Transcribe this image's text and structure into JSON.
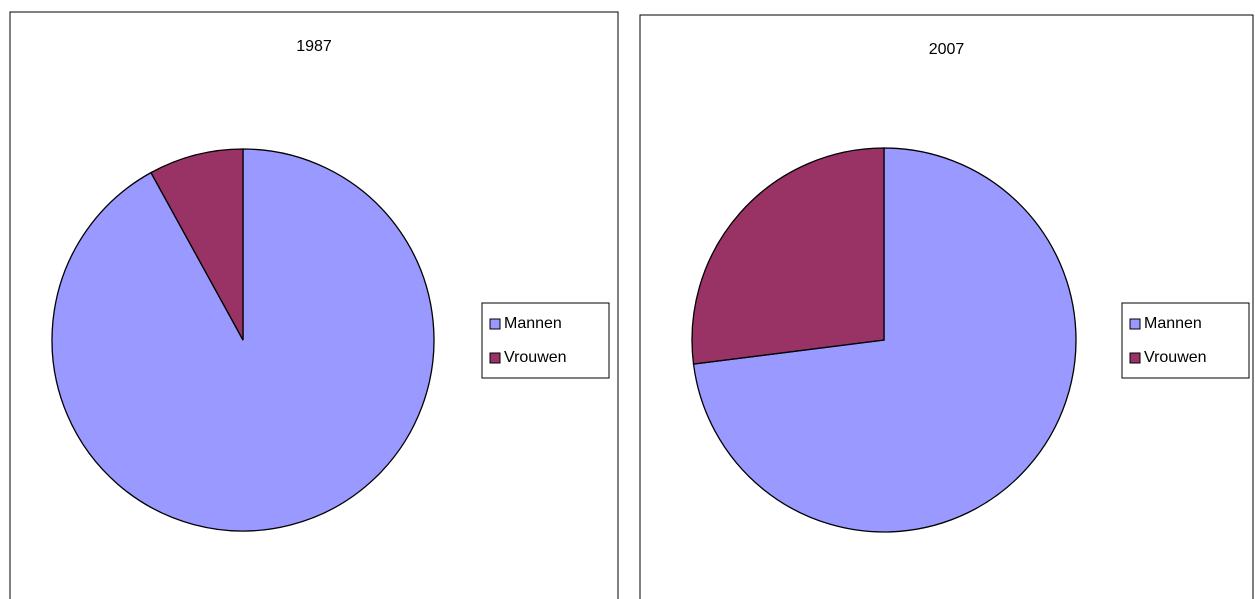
{
  "chart_data": [
    {
      "type": "pie",
      "title": "1987",
      "categories": [
        "Mannen",
        "Vrouwen"
      ],
      "values": [
        92,
        8
      ],
      "colors": [
        "#9999ff",
        "#993366"
      ],
      "legend": "right"
    },
    {
      "type": "pie",
      "title": "2007",
      "categories": [
        "Mannen",
        "Vrouwen"
      ],
      "values": [
        73,
        27
      ],
      "colors": [
        "#9999ff",
        "#993366"
      ],
      "legend": "right"
    }
  ]
}
